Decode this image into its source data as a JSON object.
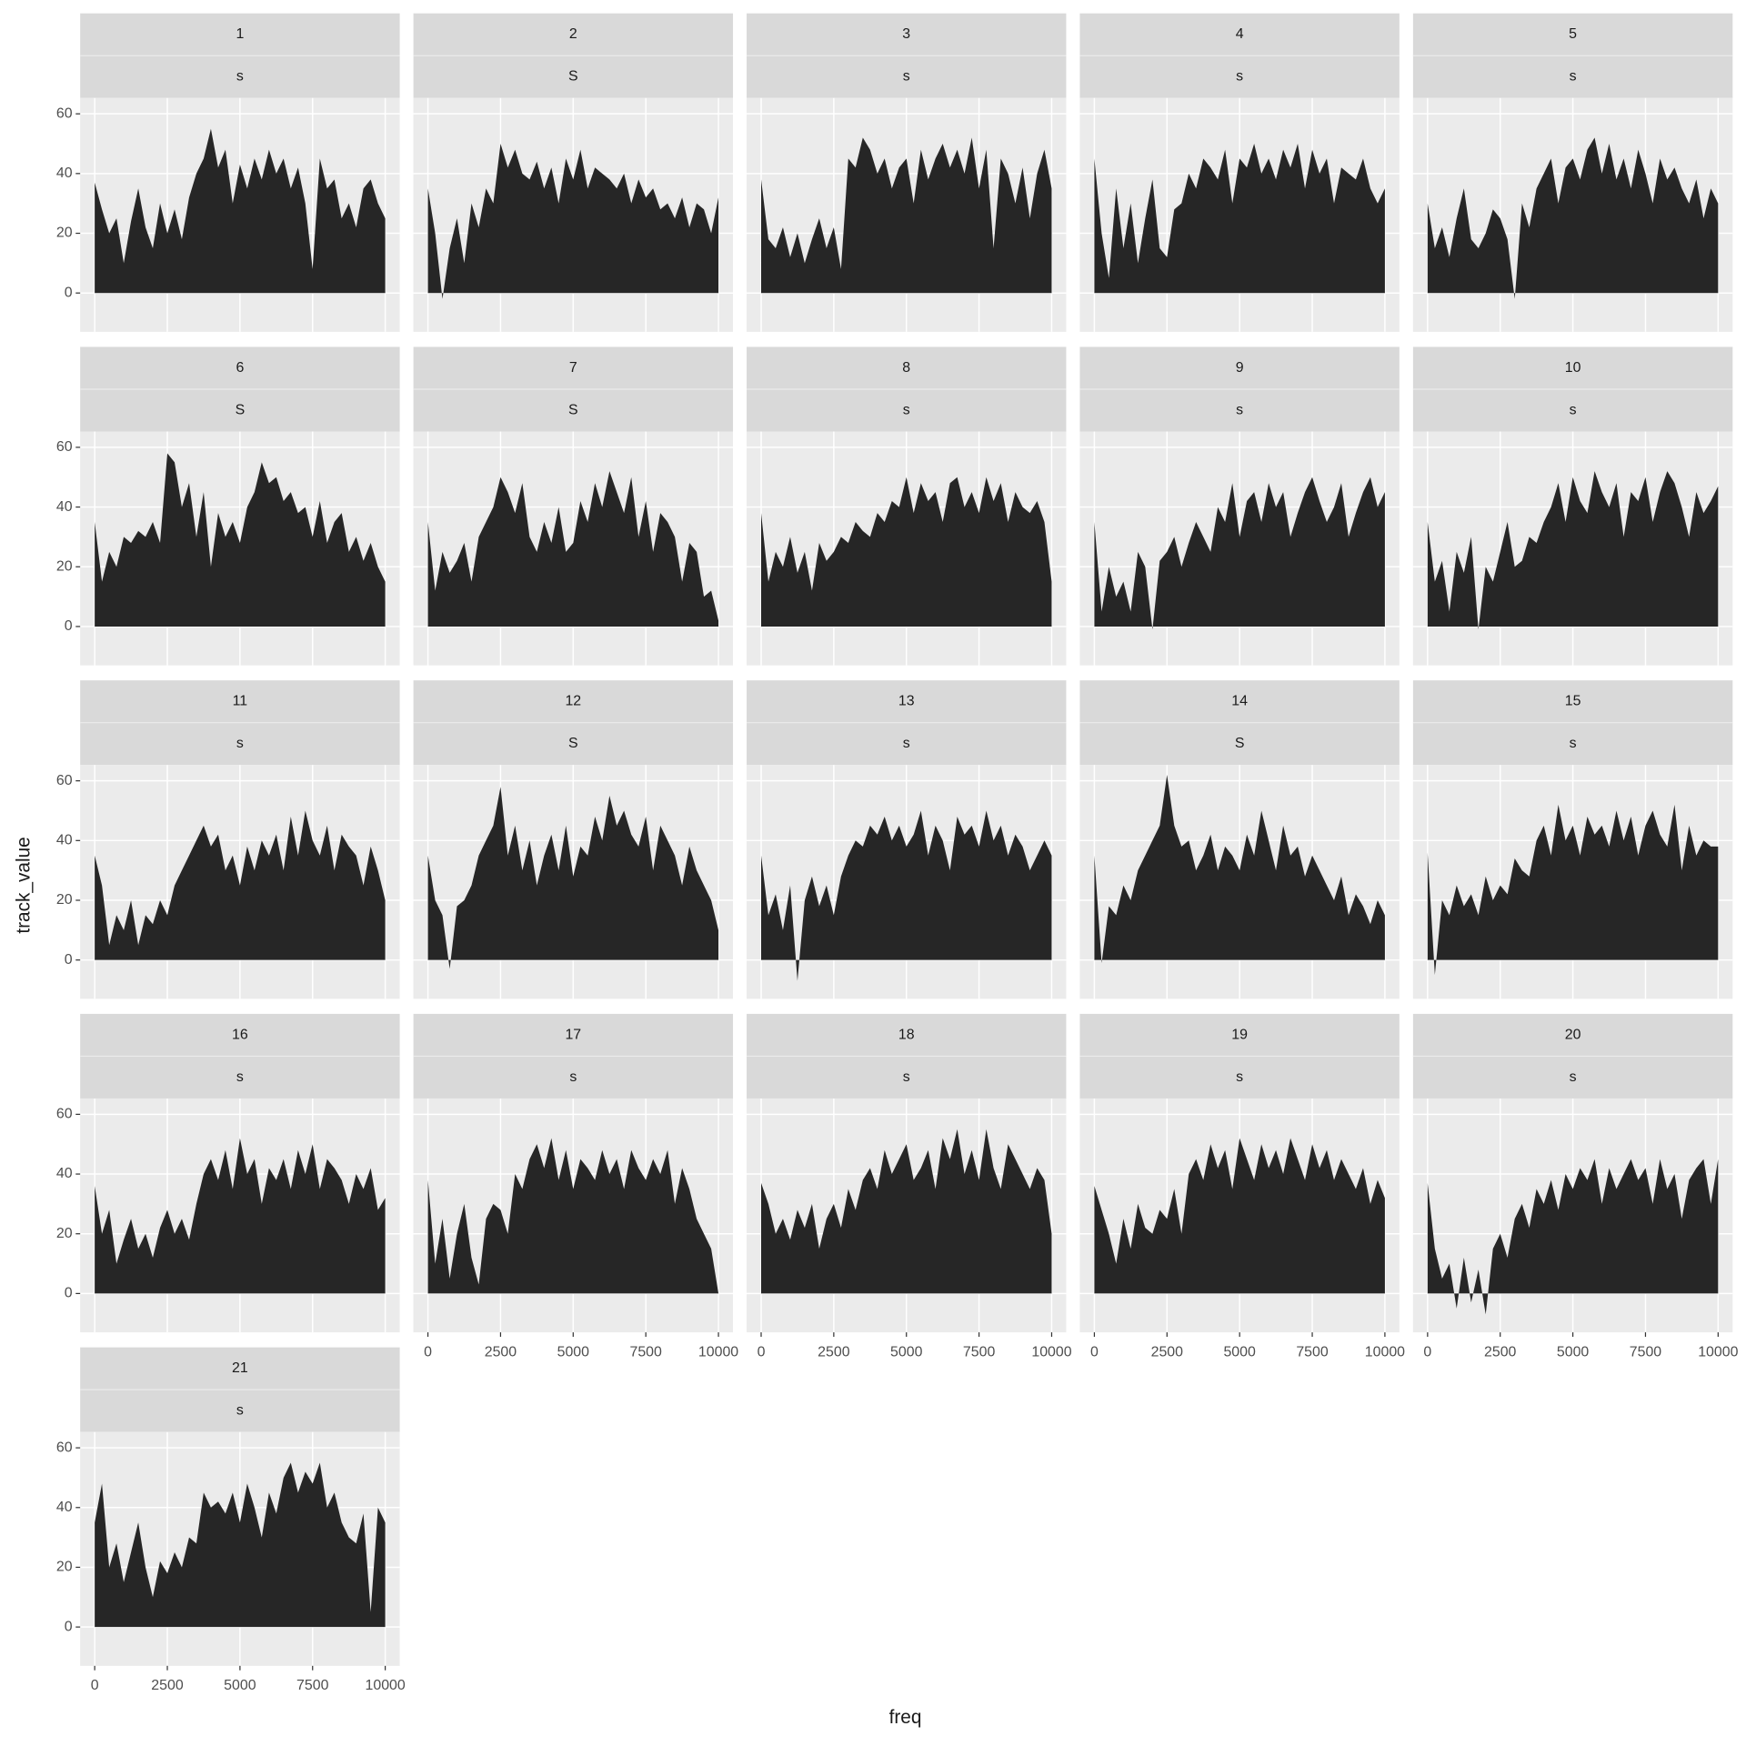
{
  "chart_data": {
    "type": "area",
    "x_label": "freq",
    "y_label": "track_value",
    "xlim": [
      -500,
      10500
    ],
    "ylim": [
      -13,
      65.3
    ],
    "xticks": [
      0,
      2500,
      5000,
      7500,
      10000
    ],
    "yticks": [
      0,
      20,
      40,
      60
    ],
    "grid": true,
    "color": "#262626",
    "x": [
      0,
      250,
      500,
      750,
      1000,
      1250,
      1500,
      1750,
      2000,
      2250,
      2500,
      2750,
      3000,
      3250,
      3500,
      3750,
      4000,
      4250,
      4500,
      4750,
      5000,
      5250,
      5500,
      5750,
      6000,
      6250,
      6500,
      6750,
      7000,
      7250,
      7500,
      7750,
      8000,
      8250,
      8500,
      8750,
      9000,
      9250,
      9500,
      9750,
      10000
    ],
    "facets": [
      {
        "label": "1",
        "sublabel": "s",
        "values": [
          37,
          28,
          20,
          25,
          10,
          24,
          35,
          22,
          15,
          30,
          20,
          28,
          18,
          32,
          40,
          45,
          55,
          42,
          48,
          30,
          43,
          35,
          45,
          38,
          48,
          40,
          45,
          35,
          42,
          30,
          8,
          45,
          35,
          38,
          25,
          30,
          22,
          35,
          38,
          30,
          25
        ]
      },
      {
        "label": "2",
        "sublabel": "S",
        "values": [
          35,
          20,
          -2,
          15,
          25,
          10,
          30,
          22,
          35,
          30,
          50,
          42,
          48,
          40,
          38,
          44,
          35,
          42,
          30,
          45,
          38,
          48,
          35,
          42,
          40,
          38,
          35,
          40,
          30,
          38,
          32,
          35,
          28,
          30,
          25,
          32,
          22,
          30,
          28,
          20,
          32
        ]
      },
      {
        "label": "3",
        "sublabel": "s",
        "values": [
          38,
          18,
          15,
          22,
          12,
          20,
          10,
          18,
          25,
          15,
          22,
          8,
          45,
          42,
          52,
          48,
          40,
          45,
          35,
          42,
          45,
          30,
          48,
          38,
          45,
          50,
          42,
          48,
          40,
          52,
          35,
          48,
          15,
          45,
          40,
          30,
          42,
          25,
          40,
          48,
          35
        ]
      },
      {
        "label": "4",
        "sublabel": "s",
        "values": [
          45,
          20,
          5,
          35,
          15,
          30,
          10,
          25,
          38,
          15,
          12,
          28,
          30,
          40,
          35,
          45,
          42,
          38,
          48,
          30,
          45,
          42,
          50,
          40,
          45,
          38,
          48,
          42,
          50,
          35,
          48,
          40,
          45,
          30,
          42,
          40,
          38,
          45,
          35,
          30,
          35
        ]
      },
      {
        "label": "5",
        "sublabel": "s",
        "values": [
          30,
          15,
          22,
          12,
          25,
          35,
          18,
          15,
          20,
          28,
          25,
          18,
          -2,
          30,
          22,
          35,
          40,
          45,
          30,
          42,
          45,
          38,
          48,
          52,
          40,
          50,
          38,
          45,
          35,
          48,
          40,
          30,
          45,
          38,
          42,
          35,
          30,
          38,
          25,
          35,
          30
        ]
      },
      {
        "label": "6",
        "sublabel": "S",
        "values": [
          35,
          15,
          25,
          20,
          30,
          28,
          32,
          30,
          35,
          28,
          58,
          55,
          40,
          48,
          30,
          45,
          20,
          38,
          30,
          35,
          28,
          40,
          45,
          55,
          48,
          50,
          42,
          45,
          38,
          40,
          30,
          42,
          28,
          35,
          38,
          25,
          30,
          22,
          28,
          20,
          15
        ]
      },
      {
        "label": "7",
        "sublabel": "S",
        "values": [
          35,
          12,
          25,
          18,
          22,
          28,
          15,
          30,
          35,
          40,
          50,
          45,
          38,
          48,
          30,
          25,
          35,
          28,
          40,
          25,
          28,
          42,
          35,
          48,
          40,
          52,
          45,
          38,
          50,
          30,
          42,
          25,
          38,
          35,
          30,
          15,
          28,
          25,
          10,
          12,
          2
        ]
      },
      {
        "label": "8",
        "sublabel": "s",
        "values": [
          38,
          15,
          25,
          20,
          30,
          18,
          25,
          12,
          28,
          22,
          25,
          30,
          28,
          35,
          32,
          30,
          38,
          35,
          42,
          40,
          50,
          38,
          48,
          42,
          45,
          35,
          48,
          50,
          40,
          45,
          38,
          50,
          42,
          48,
          35,
          45,
          40,
          38,
          42,
          35,
          15
        ]
      },
      {
        "label": "9",
        "sublabel": "s",
        "values": [
          35,
          5,
          20,
          10,
          15,
          5,
          25,
          20,
          -1,
          22,
          25,
          30,
          20,
          28,
          35,
          30,
          25,
          40,
          35,
          48,
          30,
          42,
          45,
          35,
          48,
          40,
          45,
          30,
          38,
          45,
          50,
          42,
          35,
          40,
          48,
          30,
          38,
          45,
          50,
          40,
          45
        ]
      },
      {
        "label": "10",
        "sublabel": "s",
        "values": [
          35,
          15,
          22,
          5,
          25,
          18,
          30,
          -1,
          20,
          15,
          25,
          35,
          20,
          22,
          30,
          28,
          35,
          40,
          48,
          35,
          50,
          42,
          38,
          52,
          45,
          40,
          48,
          30,
          45,
          42,
          50,
          35,
          45,
          52,
          48,
          40,
          30,
          45,
          38,
          42,
          47
        ]
      },
      {
        "label": "11",
        "sublabel": "s",
        "values": [
          35,
          25,
          5,
          15,
          10,
          20,
          5,
          15,
          12,
          20,
          15,
          25,
          30,
          35,
          40,
          45,
          38,
          42,
          30,
          35,
          25,
          38,
          30,
          40,
          35,
          42,
          30,
          48,
          35,
          50,
          40,
          35,
          45,
          30,
          42,
          38,
          35,
          25,
          38,
          30,
          20
        ]
      },
      {
        "label": "12",
        "sublabel": "S",
        "values": [
          35,
          20,
          15,
          -3,
          18,
          20,
          25,
          35,
          40,
          45,
          58,
          35,
          45,
          30,
          40,
          25,
          35,
          42,
          30,
          45,
          28,
          38,
          35,
          48,
          40,
          55,
          45,
          50,
          42,
          38,
          48,
          30,
          45,
          40,
          35,
          25,
          38,
          30,
          25,
          20,
          10
        ]
      },
      {
        "label": "13",
        "sublabel": "s",
        "values": [
          35,
          15,
          22,
          10,
          25,
          -7,
          20,
          28,
          18,
          25,
          15,
          28,
          35,
          40,
          38,
          45,
          42,
          48,
          40,
          45,
          38,
          42,
          50,
          35,
          45,
          40,
          30,
          48,
          42,
          45,
          38,
          50,
          40,
          45,
          35,
          42,
          38,
          30,
          35,
          40,
          35
        ]
      },
      {
        "label": "14",
        "sublabel": "S",
        "values": [
          35,
          -1,
          18,
          15,
          25,
          20,
          30,
          35,
          40,
          45,
          62,
          45,
          38,
          40,
          30,
          35,
          42,
          30,
          38,
          35,
          30,
          42,
          35,
          50,
          40,
          30,
          45,
          35,
          38,
          28,
          35,
          30,
          25,
          20,
          28,
          15,
          22,
          18,
          12,
          20,
          15
        ]
      },
      {
        "label": "15",
        "sublabel": "s",
        "values": [
          36,
          -5,
          20,
          15,
          25,
          18,
          22,
          15,
          28,
          20,
          25,
          22,
          34,
          30,
          28,
          40,
          45,
          35,
          52,
          40,
          45,
          35,
          48,
          42,
          45,
          38,
          50,
          40,
          48,
          35,
          45,
          50,
          42,
          38,
          52,
          30,
          45,
          35,
          40,
          38,
          38
        ]
      },
      {
        "label": "16",
        "sublabel": "s",
        "values": [
          36,
          20,
          28,
          10,
          18,
          25,
          15,
          20,
          12,
          22,
          28,
          20,
          25,
          18,
          30,
          40,
          45,
          38,
          48,
          35,
          52,
          40,
          45,
          30,
          42,
          38,
          45,
          35,
          48,
          40,
          50,
          35,
          45,
          42,
          38,
          30,
          40,
          35,
          42,
          28,
          32
        ]
      },
      {
        "label": "17",
        "sublabel": "s",
        "values": [
          38,
          10,
          25,
          5,
          20,
          30,
          12,
          3,
          25,
          30,
          28,
          20,
          40,
          35,
          45,
          50,
          42,
          52,
          38,
          48,
          35,
          45,
          42,
          38,
          48,
          40,
          45,
          35,
          48,
          42,
          38,
          45,
          40,
          48,
          30,
          42,
          35,
          25,
          20,
          15,
          0
        ]
      },
      {
        "label": "18",
        "sublabel": "s",
        "values": [
          37,
          30,
          20,
          25,
          18,
          28,
          22,
          30,
          15,
          25,
          30,
          22,
          35,
          28,
          38,
          42,
          35,
          48,
          40,
          45,
          50,
          38,
          42,
          48,
          35,
          52,
          45,
          55,
          40,
          48,
          38,
          55,
          42,
          35,
          50,
          45,
          40,
          35,
          42,
          38,
          20
        ]
      },
      {
        "label": "19",
        "sublabel": "s",
        "values": [
          36,
          28,
          20,
          10,
          25,
          15,
          30,
          22,
          20,
          28,
          25,
          35,
          20,
          40,
          45,
          38,
          50,
          42,
          48,
          35,
          52,
          45,
          38,
          50,
          42,
          48,
          40,
          52,
          45,
          38,
          50,
          42,
          48,
          38,
          45,
          40,
          35,
          42,
          30,
          38,
          32
        ]
      },
      {
        "label": "20",
        "sublabel": "s",
        "values": [
          37,
          15,
          5,
          10,
          -5,
          12,
          -3,
          8,
          -7,
          15,
          20,
          12,
          25,
          30,
          22,
          35,
          30,
          38,
          28,
          40,
          35,
          42,
          38,
          45,
          30,
          42,
          35,
          40,
          45,
          38,
          42,
          30,
          45,
          35,
          40,
          25,
          38,
          42,
          45,
          30,
          45
        ]
      },
      {
        "label": "21",
        "sublabel": "s",
        "values": [
          35,
          48,
          20,
          28,
          15,
          25,
          35,
          20,
          10,
          22,
          18,
          25,
          20,
          30,
          28,
          45,
          40,
          42,
          38,
          45,
          35,
          48,
          40,
          30,
          45,
          38,
          50,
          55,
          45,
          52,
          48,
          55,
          40,
          45,
          35,
          30,
          28,
          38,
          5,
          40,
          35
        ]
      }
    ]
  }
}
